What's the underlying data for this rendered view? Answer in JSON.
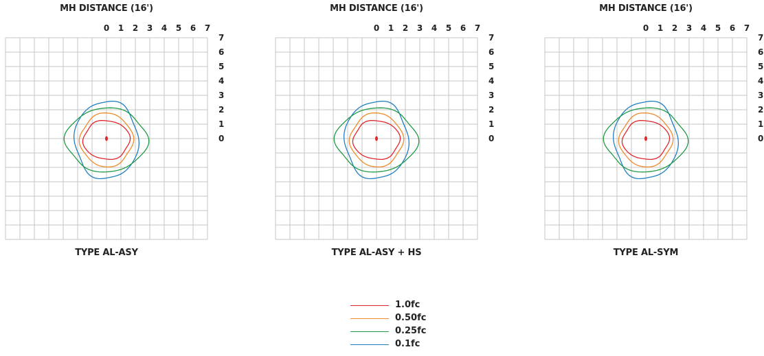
{
  "chart_data": [
    {
      "type": "contour",
      "title": "MH DISTANCE (16')",
      "subtitle": "TYPE AL-ASY",
      "x_ticks": [
        "0",
        "1",
        "2",
        "3",
        "4",
        "5",
        "6",
        "7"
      ],
      "y_ticks": [
        "7",
        "6",
        "5",
        "4",
        "3",
        "2",
        "1",
        "0"
      ],
      "xlim": [
        -7,
        7
      ],
      "ylim": [
        -7,
        7
      ],
      "grid": true,
      "contours": [
        {
          "level": "1.0fc",
          "color": "#e0262c",
          "radius_x": 1.6,
          "radius_y": 1.35
        },
        {
          "level": "0.50fc",
          "color": "#f08a2a",
          "radius_x": 1.8,
          "radius_y": 1.85
        },
        {
          "level": "0.25fc",
          "color": "#1f9a44",
          "radius_x": 2.8,
          "radius_y": 2.2
        },
        {
          "level": "0.1fc",
          "color": "#1e7fc2",
          "radius_x": 2.2,
          "radius_y": 2.7
        }
      ]
    },
    {
      "type": "contour",
      "title": "MH DISTANCE (16')",
      "subtitle": "TYPE AL-ASY  +  HS",
      "x_ticks": [
        "0",
        "1",
        "2",
        "3",
        "4",
        "5",
        "6",
        "7"
      ],
      "y_ticks": [
        "7",
        "6",
        "5",
        "4",
        "3",
        "2",
        "1",
        "0"
      ],
      "xlim": [
        -7,
        7
      ],
      "ylim": [
        -7,
        7
      ],
      "grid": true,
      "contours": [
        {
          "level": "1.0fc",
          "color": "#e0262c",
          "radius_x": 1.6,
          "radius_y": 1.35
        },
        {
          "level": "0.50fc",
          "color": "#f08a2a",
          "radius_x": 1.8,
          "radius_y": 1.85
        },
        {
          "level": "0.25fc",
          "color": "#1f9a44",
          "radius_x": 2.8,
          "radius_y": 2.2
        },
        {
          "level": "0.1fc",
          "color": "#1e7fc2",
          "radius_x": 2.2,
          "radius_y": 2.7
        }
      ]
    },
    {
      "type": "contour",
      "title": "MH DISTANCE (16')",
      "subtitle": "TYPE AL-SYM",
      "x_ticks": [
        "0",
        "1",
        "2",
        "3",
        "4",
        "5",
        "6",
        "7"
      ],
      "y_ticks": [
        "7",
        "6",
        "5",
        "4",
        "3",
        "2",
        "1",
        "0"
      ],
      "xlim": [
        -7,
        7
      ],
      "ylim": [
        -7,
        7
      ],
      "grid": true,
      "contours": [
        {
          "level": "1.0fc",
          "color": "#e0262c",
          "radius_x": 1.6,
          "radius_y": 1.35
        },
        {
          "level": "0.50fc",
          "color": "#f08a2a",
          "radius_x": 1.8,
          "radius_y": 1.85
        },
        {
          "level": "0.25fc",
          "color": "#1f9a44",
          "radius_x": 2.8,
          "radius_y": 2.2
        },
        {
          "level": "0.1fc",
          "color": "#1e7fc2",
          "radius_x": 2.2,
          "radius_y": 2.7
        }
      ]
    }
  ],
  "legend": {
    "items": [
      {
        "label": "1.0fc",
        "color": "#e0262c"
      },
      {
        "label": "0.50fc",
        "color": "#f08a2a"
      },
      {
        "label": "0.25fc",
        "color": "#1f9a44"
      },
      {
        "label": "0.1fc",
        "color": "#1e7fc2"
      }
    ]
  }
}
